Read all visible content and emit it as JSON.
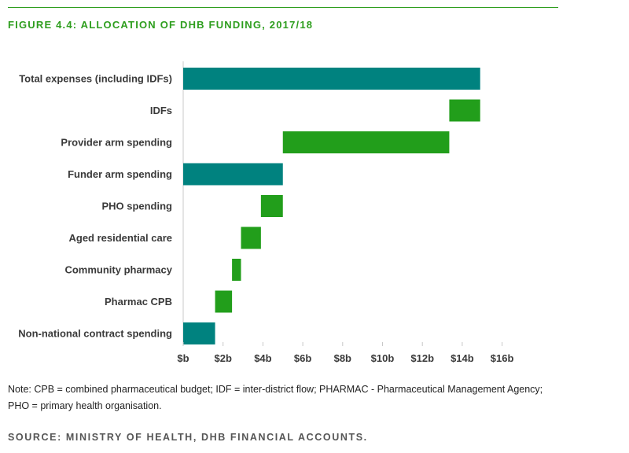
{
  "figure_title": "FIGURE 4.4: ALLOCATION OF DHB FUNDING, 2017/18",
  "note_line1": "Note: CPB = combined pharmaceutical budget; IDF = inter-district flow; PHARMAC - Pharmaceutical Management Agency;",
  "note_line2": "PHO = primary health organisation.",
  "source": "SOURCE: MINISTRY OF HEALTH, DHB FINANCIAL ACCOUNTS.",
  "colors": {
    "total": "#00827f",
    "step": "#229e1b",
    "accent": "#2e9e1e"
  },
  "chart_data": {
    "type": "bar",
    "orientation": "horizontal",
    "style": "waterfall",
    "categories": [
      "Total expenses (including IDFs)",
      "IDFs",
      "Provider arm spending",
      "Funder arm spending",
      "PHO spending",
      "Aged residential care",
      "Community pharmacy",
      "Pharmac CPB",
      "Non-national contract spending"
    ],
    "bars": [
      {
        "start": 0,
        "end": 14.9,
        "kind": "total"
      },
      {
        "start": 13.35,
        "end": 14.9,
        "kind": "step"
      },
      {
        "start": 5.0,
        "end": 13.35,
        "kind": "step"
      },
      {
        "start": 0,
        "end": 5.0,
        "kind": "total"
      },
      {
        "start": 3.9,
        "end": 5.0,
        "kind": "step"
      },
      {
        "start": 2.9,
        "end": 3.9,
        "kind": "step"
      },
      {
        "start": 2.45,
        "end": 2.9,
        "kind": "step"
      },
      {
        "start": 1.6,
        "end": 2.45,
        "kind": "step"
      },
      {
        "start": 0,
        "end": 1.6,
        "kind": "total"
      }
    ],
    "xticks": [
      "$b",
      "$2b",
      "$4b",
      "$6b",
      "$8b",
      "$10b",
      "$12b",
      "$14b",
      "$16b"
    ],
    "xlim": [
      0,
      16
    ],
    "grid": false
  }
}
